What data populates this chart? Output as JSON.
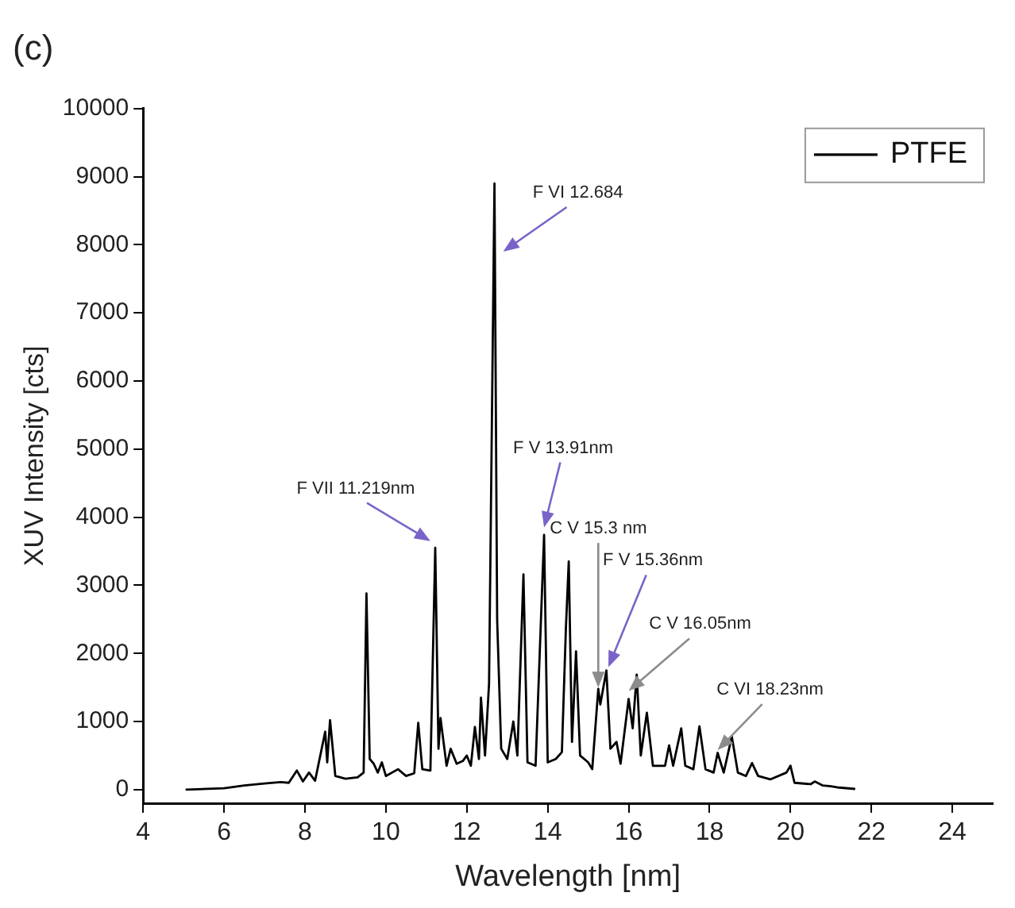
{
  "chart_data": {
    "type": "line",
    "title": "(c)",
    "xlabel": "Wavelength [nm]",
    "ylabel": "XUV Intensity [cts]",
    "xlim": [
      4,
      25
    ],
    "xticks": [
      4,
      6,
      8,
      10,
      12,
      14,
      16,
      18,
      20,
      22,
      24
    ],
    "ylim": [
      -200,
      10000
    ],
    "yticks": [
      0,
      1000,
      2000,
      3000,
      4000,
      5000,
      6000,
      7000,
      8000,
      9000,
      10000
    ],
    "grid": false,
    "legend": "top right",
    "marker": "none",
    "line_style": "solid",
    "series": [
      {
        "name": "PTFE",
        "color": "#000000",
        "x": [
          5.05,
          6.0,
          6.5,
          7.0,
          7.4,
          7.6,
          7.8,
          7.95,
          8.1,
          8.25,
          8.5,
          8.55,
          8.62,
          8.75,
          9.0,
          9.3,
          9.45,
          9.52,
          9.6,
          9.7,
          9.8,
          9.9,
          10.0,
          10.3,
          10.5,
          10.7,
          10.8,
          10.9,
          11.1,
          11.22,
          11.3,
          11.35,
          11.5,
          11.6,
          11.75,
          11.9,
          12.0,
          12.1,
          12.2,
          12.3,
          12.35,
          12.45,
          12.55,
          12.684,
          12.75,
          12.85,
          13.0,
          13.15,
          13.25,
          13.4,
          13.5,
          13.7,
          13.91,
          14.0,
          14.2,
          14.35,
          14.45,
          14.52,
          14.6,
          14.7,
          14.8,
          15.0,
          15.1,
          15.25,
          15.3,
          15.45,
          15.55,
          15.7,
          15.8,
          16.0,
          16.1,
          16.2,
          16.3,
          16.45,
          16.6,
          16.9,
          17.0,
          17.1,
          17.3,
          17.4,
          17.6,
          17.75,
          17.9,
          18.1,
          18.2,
          18.35,
          18.55,
          18.7,
          18.9,
          19.05,
          19.2,
          19.5,
          19.9,
          20.0,
          20.1,
          20.5,
          20.6,
          20.8,
          21.0,
          21.2,
          21.6
        ],
        "values": [
          0,
          20,
          60,
          90,
          110,
          100,
          280,
          120,
          250,
          130,
          850,
          400,
          1020,
          200,
          160,
          180,
          250,
          2880,
          450,
          380,
          250,
          400,
          200,
          300,
          200,
          240,
          980,
          300,
          280,
          3550,
          600,
          1050,
          350,
          600,
          380,
          420,
          500,
          350,
          920,
          450,
          1350,
          500,
          1560,
          8900,
          2500,
          600,
          450,
          1000,
          500,
          3160,
          400,
          350,
          3740,
          400,
          450,
          550,
          2380,
          3350,
          700,
          2030,
          500,
          400,
          300,
          1480,
          1250,
          1750,
          600,
          700,
          380,
          1330,
          900,
          1690,
          500,
          1130,
          350,
          350,
          650,
          350,
          900,
          350,
          300,
          930,
          300,
          250,
          540,
          250,
          780,
          250,
          200,
          390,
          200,
          150,
          250,
          350,
          100,
          80,
          120,
          60,
          50,
          30,
          10
        ]
      }
    ],
    "annotations": [
      {
        "text": "F VI 12.684",
        "x": 12.9,
        "y": 7900
      },
      {
        "text": "F VII 11.219nm",
        "x": 11.1,
        "y": 3650
      },
      {
        "text": "F V 13.91nm",
        "x": 13.91,
        "y": 3850
      },
      {
        "text": "C V 15.3 nm",
        "x": 15.25,
        "y": 1500
      },
      {
        "text": "F V 15.36nm",
        "x": 15.5,
        "y": 1800
      },
      {
        "text": "C V 16.05nm",
        "x": 16.0,
        "y": 1450
      },
      {
        "text": "C VI 18.23nm",
        "x": 18.2,
        "y": 580
      }
    ]
  }
}
